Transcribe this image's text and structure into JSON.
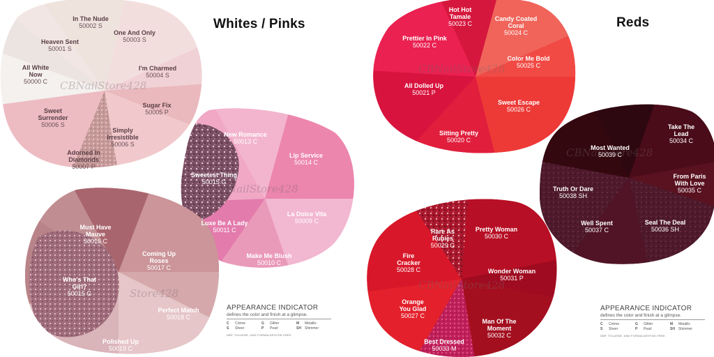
{
  "left": {
    "title": "Whites / Pinks",
    "watermarks": [
      "CBNailStore428",
      "NailStore428",
      "Store428"
    ],
    "legend": {
      "title": "APPEARANCE INDICATOR",
      "subtitle": "defines the color and finish at a glimpse.",
      "items": [
        {
          "code": "C",
          "label": "Crème"
        },
        {
          "code": "G",
          "label": "Glitter"
        },
        {
          "code": "M",
          "label": "Metallic"
        },
        {
          "code": "S",
          "label": "Sheer"
        },
        {
          "code": "P",
          "label": "Pearl"
        },
        {
          "code": "SH",
          "label": "Shimmer"
        }
      ],
      "note": "DBP, TOLUENE- AND FORMALDEHYDE-FREE."
    },
    "swatches": [
      {
        "name": "In The Nude",
        "code": "50002 S"
      },
      {
        "name": "One And Only",
        "code": "50003 S"
      },
      {
        "name": "Heaven Sent",
        "code": "50001 S"
      },
      {
        "name": "All White Now",
        "code": "50000 C"
      },
      {
        "name": "I'm Charmed",
        "code": "50004 S"
      },
      {
        "name": "Sugar Fix",
        "code": "50005 P"
      },
      {
        "name": "Sweet Surrender",
        "code": "50006 S"
      },
      {
        "name": "Simply Irresistible",
        "code": "50006 S"
      },
      {
        "name": "Adorned In Diamonds",
        "code": "50007 P"
      },
      {
        "name": "New Romance",
        "code": "50013 C"
      },
      {
        "name": "Lip Service",
        "code": "50014 C"
      },
      {
        "name": "Sweetest Thing",
        "code": "50015 G"
      },
      {
        "name": "Luxe Be A Lady",
        "code": "50011 C"
      },
      {
        "name": "La Dolce Vita",
        "code": "50009 C"
      },
      {
        "name": "Make Me Blush",
        "code": "50010 C"
      },
      {
        "name": "Must Have Mauve",
        "code": "50016 C"
      },
      {
        "name": "Coming Up Roses",
        "code": "50017 C"
      },
      {
        "name": "Who's That Girl?",
        "code": "50015 G"
      },
      {
        "name": "Perfect Match",
        "code": "50018 C"
      },
      {
        "name": "Polished Up",
        "code": "50019 C"
      }
    ]
  },
  "right": {
    "title": "Reds",
    "watermarks": [
      "CBNailStore428",
      "CBNailStore428",
      "CBNailStore428"
    ],
    "legend": {
      "title": "APPEARANCE INDICATOR",
      "subtitle": "defines the color and finish at a glimpse.",
      "items": [
        {
          "code": "C",
          "label": "Crème"
        },
        {
          "code": "G",
          "label": "Glitter"
        },
        {
          "code": "M",
          "label": "Metallic"
        },
        {
          "code": "S",
          "label": "Sheer"
        },
        {
          "code": "P",
          "label": "Pearl"
        },
        {
          "code": "SH",
          "label": "Shimmer"
        }
      ],
      "note": "DBP, TOLUENE- AND FORMALDEHYDE-FREE."
    },
    "swatches": [
      {
        "name": "Hot Hot Tamale",
        "code": "50023 C"
      },
      {
        "name": "Candy Coated Coral",
        "code": "50024 C"
      },
      {
        "name": "Prettier In Pink",
        "code": "50022 C"
      },
      {
        "name": "Color Me Bold",
        "code": "50025 C"
      },
      {
        "name": "All Dolled Up",
        "code": "50021 P"
      },
      {
        "name": "Sweet Escape",
        "code": "50026 C"
      },
      {
        "name": "Sitting Pretty",
        "code": "50020 C"
      },
      {
        "name": "Take The Lead",
        "code": "50034 C"
      },
      {
        "name": "Most Wanted",
        "code": "50039 C"
      },
      {
        "name": "From Paris With Love",
        "code": "50035 C"
      },
      {
        "name": "Truth Or Dare",
        "code": "50038 SH"
      },
      {
        "name": "Well Spent",
        "code": "50037 C"
      },
      {
        "name": "Seal The Deal",
        "code": "50036 SH"
      },
      {
        "name": "Rare As Rubies",
        "code": "50029 G"
      },
      {
        "name": "Pretty Woman",
        "code": "50030 C"
      },
      {
        "name": "Fire Cracker",
        "code": "50028 C"
      },
      {
        "name": "Wonder Woman",
        "code": "50031 P"
      },
      {
        "name": "Orange You Glad",
        "code": "50027 C"
      },
      {
        "name": "Man Of The Moment",
        "code": "50032 C"
      },
      {
        "name": "Best Dressed",
        "code": "50033 M"
      }
    ]
  }
}
